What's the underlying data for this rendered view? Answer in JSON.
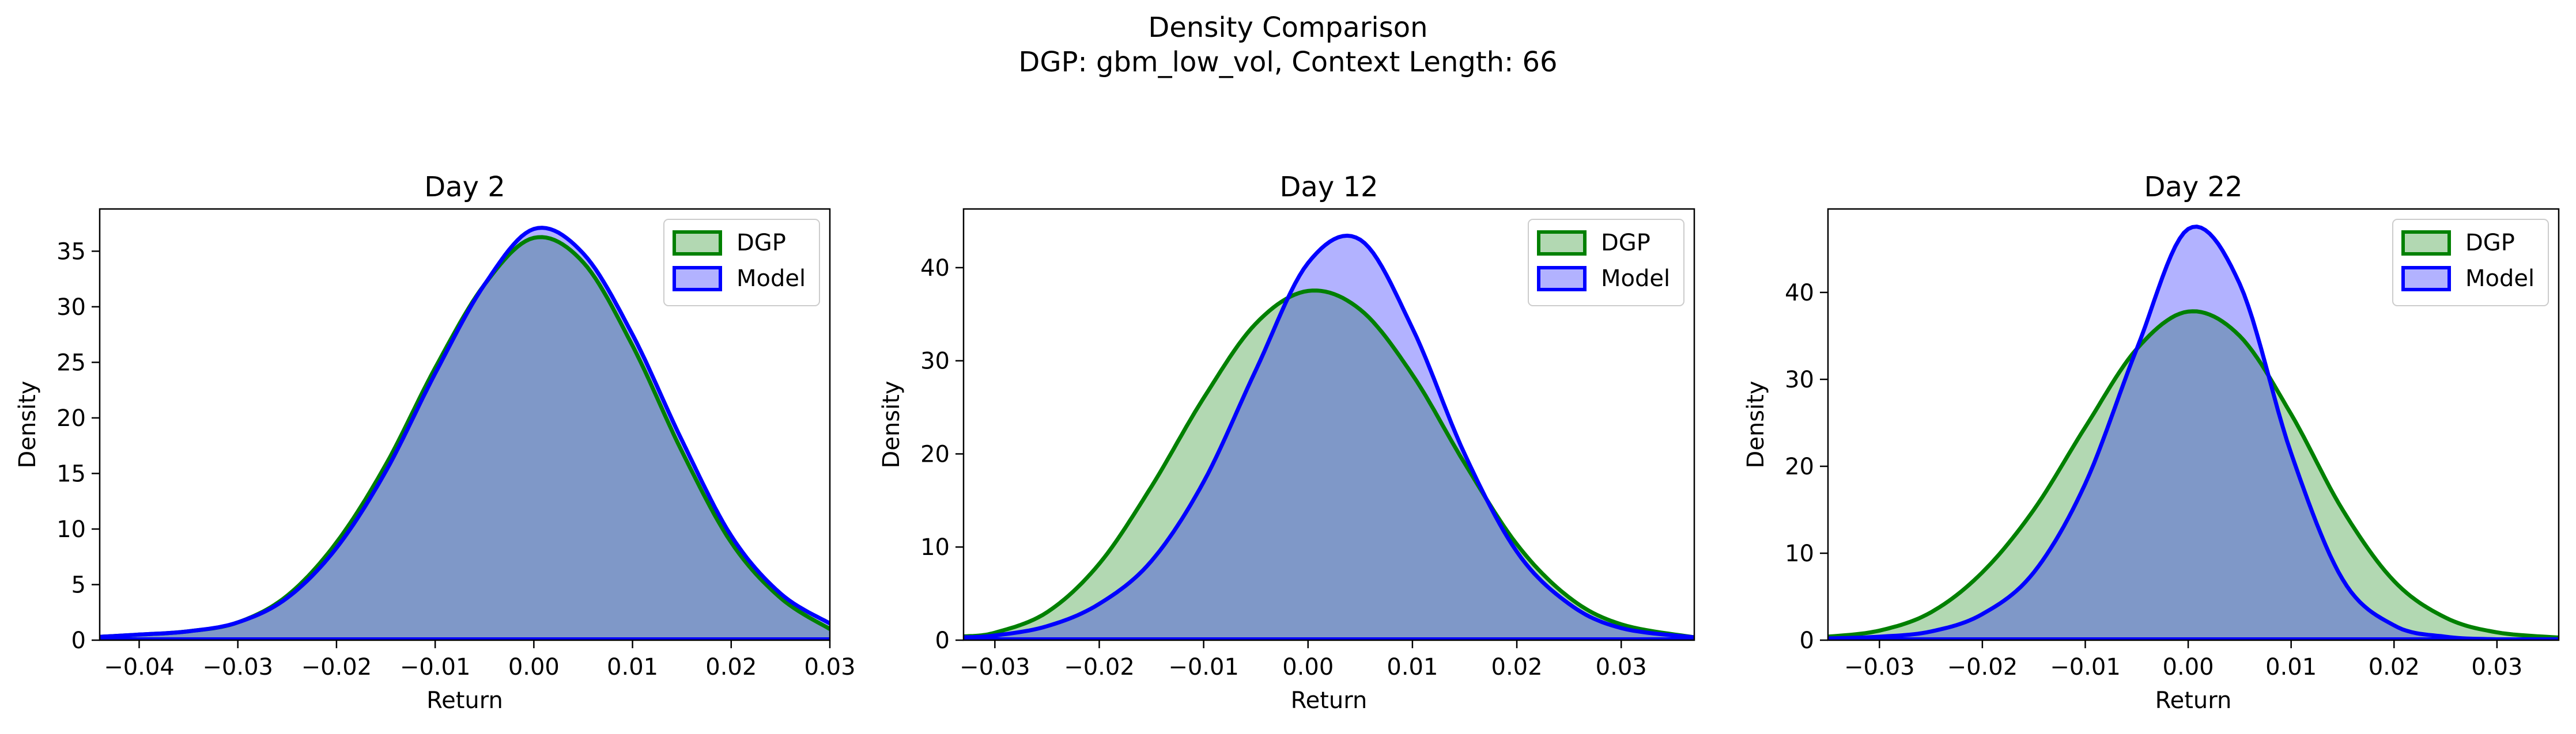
{
  "figure": {
    "title_line1": "Density Comparison",
    "title_line2": "DGP: gbm_low_vol, Context Length: 66"
  },
  "colors": {
    "dgp_line": "#008000",
    "dgp_fill": "#b2d8b2",
    "model_line": "#0000ff",
    "model_fill": "#b2b2ff",
    "overlap_fill": "#7f98c8",
    "overlap_line": "#005050"
  },
  "chart_data": [
    {
      "type": "area",
      "title": "Day 2",
      "xlabel": "Return",
      "ylabel": "Density",
      "xlim": [
        -0.044,
        0.03
      ],
      "ylim": [
        0,
        38.8
      ],
      "xticks": [
        -0.04,
        -0.03,
        -0.02,
        -0.01,
        0.0,
        0.01,
        0.02,
        0.03
      ],
      "yticks": [
        0,
        5,
        10,
        15,
        20,
        25,
        30,
        35
      ],
      "legend": "top-right",
      "series": [
        {
          "name": "DGP",
          "x": [
            -0.044,
            -0.04,
            -0.035,
            -0.03,
            -0.025,
            -0.02,
            -0.015,
            -0.01,
            -0.005,
            0.0,
            0.005,
            0.01,
            0.015,
            0.02,
            0.025,
            0.03
          ],
          "y": [
            0.3,
            0.5,
            0.8,
            1.6,
            4.0,
            8.8,
            15.8,
            24.5,
            32.0,
            36.2,
            34.0,
            26.5,
            17.0,
            8.8,
            3.8,
            1.0
          ]
        },
        {
          "name": "Model",
          "x": [
            -0.044,
            -0.04,
            -0.035,
            -0.03,
            -0.025,
            -0.02,
            -0.015,
            -0.01,
            -0.005,
            0.0,
            0.005,
            0.01,
            0.015,
            0.02,
            0.025,
            0.03
          ],
          "y": [
            0.3,
            0.5,
            0.8,
            1.6,
            3.8,
            8.3,
            15.2,
            24.0,
            32.0,
            37.0,
            34.8,
            27.5,
            18.0,
            9.4,
            4.2,
            1.5
          ]
        }
      ]
    },
    {
      "type": "area",
      "title": "Day 12",
      "xlabel": "Return",
      "ylabel": "Density",
      "xlim": [
        -0.033,
        0.037
      ],
      "ylim": [
        0,
        46.3
      ],
      "xticks": [
        -0.03,
        -0.02,
        -0.01,
        0.0,
        0.01,
        0.02,
        0.03
      ],
      "yticks": [
        0,
        10,
        20,
        30,
        40
      ],
      "legend": "top-right",
      "series": [
        {
          "name": "DGP",
          "x": [
            -0.033,
            -0.03,
            -0.025,
            -0.02,
            -0.015,
            -0.01,
            -0.005,
            0.0,
            0.005,
            0.01,
            0.015,
            0.02,
            0.025,
            0.03,
            0.037
          ],
          "y": [
            0.4,
            0.8,
            3.0,
            8.2,
            16.5,
            26.0,
            34.0,
            37.5,
            35.5,
            28.5,
            19.0,
            10.3,
            4.6,
            1.7,
            0.3
          ]
        },
        {
          "name": "Model",
          "x": [
            -0.033,
            -0.03,
            -0.025,
            -0.02,
            -0.015,
            -0.01,
            -0.005,
            0.0,
            0.005,
            0.01,
            0.015,
            0.02,
            0.025,
            0.03,
            0.037
          ],
          "y": [
            0.3,
            0.5,
            1.5,
            3.9,
            8.5,
            17.0,
            29.0,
            40.5,
            43.0,
            33.5,
            20.0,
            9.5,
            3.9,
            1.3,
            0.3
          ]
        }
      ]
    },
    {
      "type": "area",
      "title": "Day 22",
      "xlabel": "Return",
      "ylabel": "Density",
      "xlim": [
        -0.035,
        0.036
      ],
      "ylim": [
        0,
        49.6
      ],
      "xticks": [
        -0.03,
        -0.02,
        -0.01,
        0.0,
        0.01,
        0.02,
        0.03
      ],
      "yticks": [
        0,
        10,
        20,
        30,
        40
      ],
      "legend": "top-right",
      "series": [
        {
          "name": "DGP",
          "x": [
            -0.035,
            -0.03,
            -0.025,
            -0.02,
            -0.015,
            -0.01,
            -0.005,
            0.0,
            0.005,
            0.01,
            0.015,
            0.02,
            0.025,
            0.03,
            0.036
          ],
          "y": [
            0.4,
            1.1,
            3.2,
            7.8,
            15.0,
            24.5,
            33.5,
            37.8,
            35.0,
            26.0,
            15.0,
            6.8,
            2.6,
            0.9,
            0.3
          ]
        },
        {
          "name": "Model",
          "x": [
            -0.035,
            -0.03,
            -0.025,
            -0.02,
            -0.015,
            -0.01,
            -0.005,
            0.0,
            0.005,
            0.01,
            0.015,
            0.02,
            0.025,
            0.03,
            0.036
          ],
          "y": [
            0.2,
            0.4,
            1.0,
            3.0,
            7.8,
            18.0,
            33.5,
            47.3,
            41.0,
            21.5,
            7.0,
            1.7,
            0.4,
            0.1,
            0.0
          ]
        }
      ]
    }
  ]
}
